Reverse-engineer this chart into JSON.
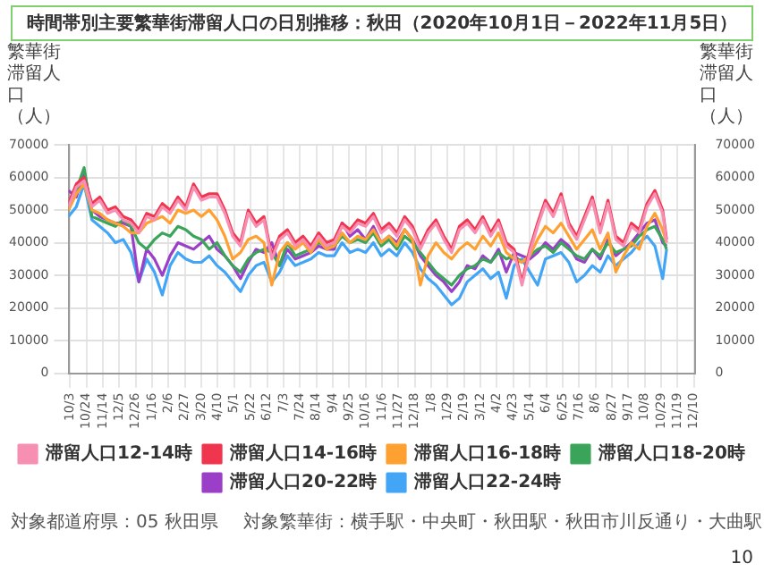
{
  "chart_data": {
    "type": "line",
    "title": "時間帯別主要繁華街滞留人口の日別推移：秋田（2020年10月1日－2022年11月5日）",
    "ylabel": "繁華街滞留人口（人）",
    "y2label": "繁華街滞留人口（人）",
    "x": [
      "2020-10-01",
      "2020-10-11",
      "2020-10-21",
      "2020-10-31",
      "2020-11-10",
      "2020-11-20",
      "2020-11-30",
      "2020-12-10",
      "2020-12-20",
      "2020-12-30",
      "2021-01-09",
      "2021-01-19",
      "2021-01-29",
      "2021-02-08",
      "2021-02-18",
      "2021-02-28",
      "2021-03-10",
      "2021-03-20",
      "2021-03-30",
      "2021-04-09",
      "2021-04-19",
      "2021-04-29",
      "2021-05-09",
      "2021-05-19",
      "2021-05-29",
      "2021-06-08",
      "2021-06-18",
      "2021-06-28",
      "2021-07-08",
      "2021-07-18",
      "2021-07-28",
      "2021-08-07",
      "2021-08-17",
      "2021-08-27",
      "2021-09-06",
      "2021-09-16",
      "2021-09-26",
      "2021-10-06",
      "2021-10-16",
      "2021-10-26",
      "2021-11-05",
      "2021-11-15",
      "2021-11-25",
      "2021-12-05",
      "2021-12-15",
      "2021-12-25",
      "2022-01-04",
      "2022-01-14",
      "2022-01-24",
      "2022-02-03",
      "2022-02-13",
      "2022-02-23",
      "2022-03-05",
      "2022-03-15",
      "2022-03-25",
      "2022-04-04",
      "2022-04-14",
      "2022-04-24",
      "2022-05-04",
      "2022-05-14",
      "2022-05-24",
      "2022-06-03",
      "2022-06-13",
      "2022-06-23",
      "2022-07-03",
      "2022-07-13",
      "2022-07-23",
      "2022-08-02",
      "2022-08-12",
      "2022-08-22",
      "2022-09-01",
      "2022-09-11",
      "2022-09-21",
      "2022-10-01",
      "2022-10-11",
      "2022-10-21",
      "2022-10-31",
      "2022-11-05"
    ],
    "series": [
      {
        "name": "滞留人口12-14時",
        "color": "#f78fb3",
        "values": [
          51000,
          57000,
          59000,
          51000,
          53000,
          49000,
          50000,
          47000,
          46000,
          43000,
          48000,
          47000,
          51000,
          49000,
          53000,
          50000,
          57000,
          53000,
          54000,
          54000,
          49000,
          42000,
          39000,
          49000,
          45000,
          47000,
          35000,
          41000,
          43000,
          39000,
          41000,
          38000,
          42000,
          39000,
          40000,
          45000,
          43000,
          46000,
          45000,
          48000,
          43000,
          45000,
          42000,
          47000,
          44000,
          38000,
          43000,
          46000,
          41000,
          37000,
          44000,
          46000,
          43000,
          47000,
          42000,
          46000,
          39000,
          37000,
          27000,
          37000,
          45000,
          52000,
          48000,
          54000,
          45000,
          41000,
          47000,
          53000,
          43000,
          52000,
          41000,
          39000,
          45000,
          43000,
          51000,
          55000,
          49000,
          40000
        ]
      },
      {
        "name": "滞留人口14-16時",
        "color": "#f0354f",
        "values": [
          52000,
          58000,
          60000,
          52000,
          54000,
          50000,
          51000,
          48000,
          47000,
          44000,
          49000,
          48000,
          52000,
          50000,
          54000,
          51000,
          58000,
          54000,
          55000,
          55000,
          50000,
          43000,
          40000,
          50000,
          46000,
          48000,
          36000,
          42000,
          44000,
          40000,
          42000,
          39000,
          43000,
          40000,
          41000,
          46000,
          44000,
          47000,
          46000,
          49000,
          44000,
          46000,
          43000,
          48000,
          45000,
          39000,
          44000,
          47000,
          42000,
          38000,
          45000,
          47000,
          44000,
          48000,
          43000,
          47000,
          40000,
          38000,
          28000,
          38000,
          46000,
          53000,
          49000,
          55000,
          46000,
          42000,
          48000,
          54000,
          44000,
          53000,
          42000,
          40000,
          46000,
          44000,
          52000,
          56000,
          50000,
          41000
        ]
      },
      {
        "name": "滞留人口16-18時",
        "color": "#ffa033",
        "values": [
          50000,
          55000,
          58000,
          50000,
          49000,
          47000,
          46000,
          45000,
          43000,
          43000,
          46000,
          47000,
          48000,
          46000,
          50000,
          49000,
          50000,
          48000,
          50000,
          47000,
          42000,
          35000,
          37000,
          41000,
          42000,
          40000,
          27000,
          37000,
          40000,
          38000,
          40000,
          37000,
          41000,
          38000,
          39000,
          43000,
          40000,
          42000,
          41000,
          44000,
          40000,
          42000,
          39000,
          44000,
          41000,
          27000,
          36000,
          40000,
          37000,
          35000,
          38000,
          40000,
          38000,
          42000,
          39000,
          43000,
          37000,
          35000,
          34000,
          36000,
          41000,
          45000,
          43000,
          46000,
          42000,
          38000,
          41000,
          44000,
          38000,
          43000,
          31000,
          36000,
          40000,
          38000,
          45000,
          49000,
          44000,
          40000
        ]
      },
      {
        "name": "滞留人口18-20時",
        "color": "#3aa55a",
        "values": [
          50000,
          56000,
          63000,
          48000,
          47000,
          46000,
          45000,
          47000,
          45000,
          40000,
          38000,
          41000,
          43000,
          42000,
          45000,
          44000,
          42000,
          41000,
          38000,
          40000,
          36000,
          33000,
          31000,
          35000,
          37000,
          38000,
          37000,
          33000,
          40000,
          36000,
          37000,
          38000,
          40000,
          39000,
          39000,
          42000,
          40000,
          41000,
          40000,
          43000,
          39000,
          41000,
          38000,
          42000,
          40000,
          37000,
          34000,
          31000,
          29000,
          27000,
          30000,
          32000,
          33000,
          35000,
          34000,
          37000,
          35000,
          36000,
          34000,
          36000,
          38000,
          39000,
          37000,
          40000,
          38000,
          36000,
          35000,
          38000,
          36000,
          40000,
          37000,
          38000,
          39000,
          42000,
          44000,
          45000,
          41000,
          38000
        ]
      },
      {
        "name": "滞留人口20-22時",
        "color": "#9b3fc8",
        "values": [
          56000,
          54000,
          62000,
          50000,
          48000,
          47000,
          46000,
          46000,
          45000,
          28000,
          38000,
          35000,
          30000,
          36000,
          40000,
          39000,
          38000,
          40000,
          42000,
          38000,
          36000,
          33000,
          29000,
          34000,
          38000,
          37000,
          40000,
          33000,
          38000,
          35000,
          36000,
          37000,
          39000,
          38000,
          38000,
          46000,
          42000,
          44000,
          41000,
          45000,
          40000,
          42000,
          40000,
          44000,
          41000,
          36000,
          33000,
          30000,
          28000,
          25000,
          28000,
          33000,
          32000,
          36000,
          34000,
          38000,
          31000,
          37000,
          36000,
          35000,
          37000,
          40000,
          38000,
          41000,
          39000,
          35000,
          34000,
          38000,
          35000,
          41000,
          36000,
          38000,
          40000,
          43000,
          46000,
          47000,
          40000,
          39000
        ]
      },
      {
        "name": "滞留人口22-24時",
        "color": "#42a5f5",
        "values": [
          48000,
          51000,
          58000,
          47000,
          45000,
          43000,
          40000,
          41000,
          37000,
          28000,
          35000,
          31000,
          24000,
          33000,
          37000,
          35000,
          34000,
          34000,
          36000,
          33000,
          31000,
          28000,
          25000,
          30000,
          33000,
          34000,
          28000,
          31000,
          36000,
          33000,
          34000,
          35000,
          37000,
          36000,
          36000,
          40000,
          37000,
          38000,
          37000,
          40000,
          36000,
          38000,
          36000,
          40000,
          37000,
          32000,
          29000,
          27000,
          24000,
          21000,
          23000,
          28000,
          30000,
          32000,
          29000,
          31000,
          23000,
          33000,
          35000,
          31000,
          27000,
          35000,
          36000,
          37000,
          34000,
          28000,
          30000,
          33000,
          31000,
          36000,
          33000,
          35000,
          37000,
          40000,
          42000,
          39000,
          29000,
          38000
        ]
      }
    ],
    "ylim": [
      0,
      70000
    ],
    "yticks": [
      0,
      10000,
      20000,
      30000,
      40000,
      50000,
      60000,
      70000
    ],
    "y2lim": [
      0,
      70000
    ],
    "y2ticks": [
      0,
      10000,
      20000,
      30000,
      40000,
      50000,
      60000,
      70000
    ],
    "xlim": [
      "2020-10-01",
      "2022-12-12"
    ],
    "xticks": [
      {
        "value": "2020-10-03",
        "label": "10/3"
      },
      {
        "value": "2020-10-24",
        "label": "10/24"
      },
      {
        "value": "2020-11-14",
        "label": "11/14"
      },
      {
        "value": "2020-12-05",
        "label": "12/5"
      },
      {
        "value": "2020-12-26",
        "label": "12/26"
      },
      {
        "value": "2021-01-16",
        "label": "1/16"
      },
      {
        "value": "2021-02-06",
        "label": "2/6"
      },
      {
        "value": "2021-02-27",
        "label": "2/27"
      },
      {
        "value": "2021-03-20",
        "label": "3/20"
      },
      {
        "value": "2021-04-10",
        "label": "4/10"
      },
      {
        "value": "2021-05-01",
        "label": "5/1"
      },
      {
        "value": "2021-05-22",
        "label": "5/22"
      },
      {
        "value": "2021-06-12",
        "label": "6/12"
      },
      {
        "value": "2021-07-03",
        "label": "7/3"
      },
      {
        "value": "2021-07-24",
        "label": "7/24"
      },
      {
        "value": "2021-08-14",
        "label": "8/14"
      },
      {
        "value": "2021-09-04",
        "label": "9/4"
      },
      {
        "value": "2021-09-25",
        "label": "9/25"
      },
      {
        "value": "2021-10-16",
        "label": "10/16"
      },
      {
        "value": "2021-11-06",
        "label": "11/6"
      },
      {
        "value": "2021-11-27",
        "label": "11/27"
      },
      {
        "value": "2021-12-18",
        "label": "12/18"
      },
      {
        "value": "2022-01-08",
        "label": "1/8"
      },
      {
        "value": "2022-01-29",
        "label": "1/29"
      },
      {
        "value": "2022-02-19",
        "label": "2/19"
      },
      {
        "value": "2022-03-12",
        "label": "3/12"
      },
      {
        "value": "2022-04-02",
        "label": "4/2"
      },
      {
        "value": "2022-04-23",
        "label": "4/23"
      },
      {
        "value": "2022-05-14",
        "label": "5/14"
      },
      {
        "value": "2022-06-04",
        "label": "6/4"
      },
      {
        "value": "2022-06-25",
        "label": "6/25"
      },
      {
        "value": "2022-07-16",
        "label": "7/16"
      },
      {
        "value": "2022-08-06",
        "label": "8/6"
      },
      {
        "value": "2022-08-27",
        "label": "8/27"
      },
      {
        "value": "2022-09-17",
        "label": "9/17"
      },
      {
        "value": "2022-10-08",
        "label": "10/8"
      },
      {
        "value": "2022-10-29",
        "label": "10/29"
      },
      {
        "value": "2022-11-19",
        "label": "11/19"
      },
      {
        "value": "2022-12-10",
        "label": "12/10"
      }
    ],
    "grid": true,
    "legend": "bottom",
    "marker": "none",
    "line_style": "solid",
    "annotations": [
      "対象都道府県：05 秋田県",
      "対象繁華街：横手駅・中央町・秋田駅・秋田市川反通り・大曲駅",
      "10"
    ]
  }
}
